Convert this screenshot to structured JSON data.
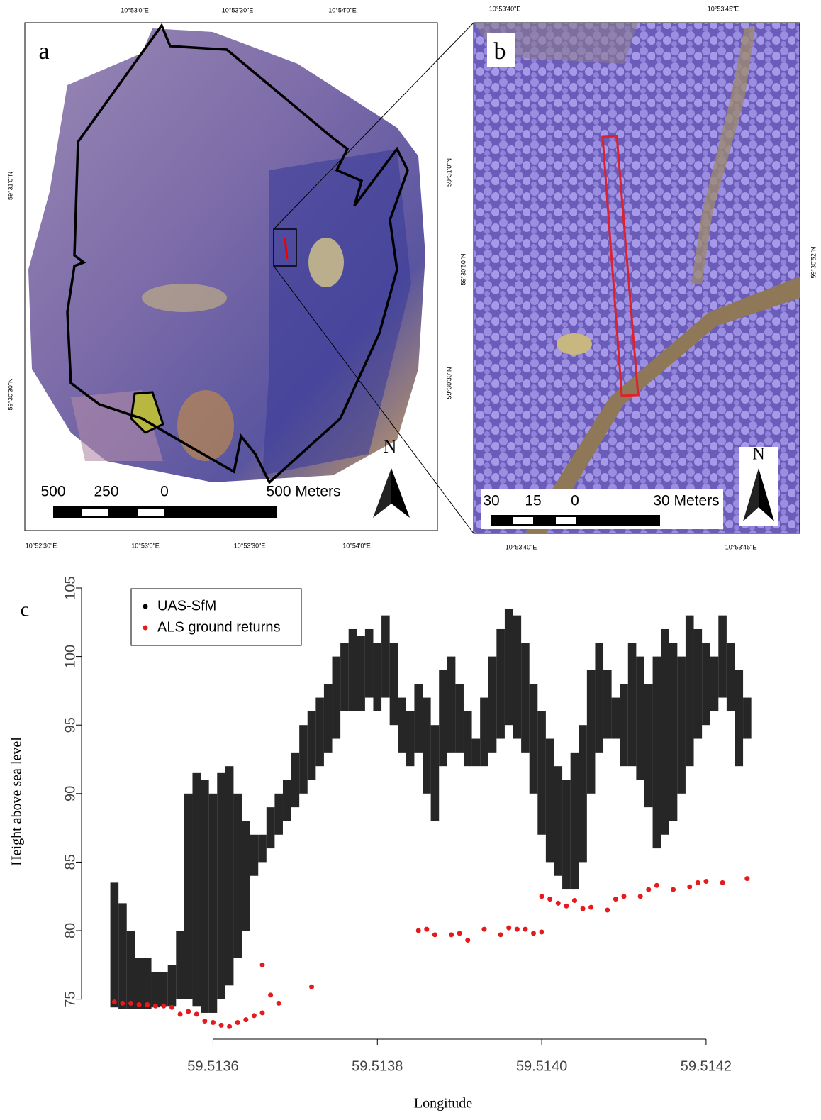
{
  "panels": [
    {
      "label": "a",
      "coords": {
        "top": [
          "10°53'0\"E",
          "10°53'30\"E",
          "10°54'0\"E"
        ],
        "bottom": [
          "10°52'30\"E",
          "10°53'0\"E",
          "10°53'30\"E",
          "10°54'0\"E"
        ],
        "left": [
          "59°31'0\"N",
          "59°30'30\"N"
        ],
        "right": [
          "59°31'0\"N",
          "59°30'30\"N"
        ]
      },
      "scale": [
        "500",
        "250",
        "0",
        "500 Meters"
      ],
      "north": "N"
    },
    {
      "label": "b",
      "coords": {
        "top": [
          "10°53'40\"E",
          "10°53'45\"E"
        ],
        "bottom": [
          "10°53'40\"E",
          "10°53'45\"E"
        ],
        "left": [
          "59°30'50\"N"
        ],
        "right": [
          "59°30'52\"N"
        ]
      },
      "scale": [
        "30",
        "15",
        "0",
        "30 Meters"
      ],
      "north": "N"
    }
  ],
  "chart_data": {
    "type": "scatter",
    "panel_label": "c",
    "x_label": "Longitude",
    "y_label": "Height above sea level",
    "xlim": [
      59.51344,
      59.51432
    ],
    "ylim": [
      72.6,
      105
    ],
    "xticks": [
      59.5136,
      59.5138,
      {
        "value": 59.514,
        "label": "59.5140"
      },
      59.5142
    ],
    "yticks": [
      75,
      80,
      85,
      90,
      95,
      100,
      105
    ],
    "legend": "top-left",
    "series": [
      {
        "name": "UAS-SfM",
        "color": "#000000",
        "x": [
          59.51348,
          59.51349,
          59.5135,
          59.51351,
          59.51352,
          59.51353,
          59.51354,
          59.51355,
          59.51356,
          59.51357,
          59.51358,
          59.51359,
          59.5136,
          59.51361,
          59.51362,
          59.51363,
          59.51364,
          59.51365,
          59.51366,
          59.51367,
          59.51368,
          59.51369,
          59.5137,
          59.51371,
          59.51372,
          59.51373,
          59.51374,
          59.51375,
          59.51376,
          59.51377,
          59.51378,
          59.51379,
          59.5138,
          59.51381,
          59.51382,
          59.51383,
          59.51384,
          59.51385,
          59.51386,
          59.51387,
          59.51388,
          59.51389,
          59.5139,
          59.51391,
          59.51392,
          59.51393,
          59.51394,
          59.51395,
          59.51396,
          59.51397,
          59.51398,
          59.51399,
          59.514,
          59.51401,
          59.51402,
          59.51403,
          59.51404,
          59.51405,
          59.51406,
          59.51407,
          59.51408,
          59.51409,
          59.5141,
          59.51411,
          59.51412,
          59.51413,
          59.51414,
          59.51415,
          59.51416,
          59.51417,
          59.51418,
          59.51419,
          59.5142,
          59.51421,
          59.51422,
          59.51423,
          59.51424,
          59.51425
        ],
        "low": [
          74.4,
          74.3,
          74.3,
          74.3,
          74.3,
          74.4,
          74.5,
          74.5,
          75,
          75,
          74.5,
          74,
          74,
          75,
          76,
          78,
          80,
          84,
          85,
          86,
          87,
          88,
          89,
          90,
          91,
          92,
          93,
          94,
          96,
          96,
          96,
          97,
          96,
          97,
          95,
          93,
          92,
          93,
          90,
          88,
          92,
          93,
          93,
          92,
          92,
          92,
          93,
          94,
          95,
          94,
          93,
          90,
          87,
          85,
          84,
          83,
          83,
          85,
          90,
          93,
          94,
          94,
          92,
          92,
          91,
          89,
          86,
          87,
          88,
          90,
          92,
          94,
          95,
          96,
          97,
          96,
          92,
          94
        ],
        "high": [
          83.5,
          82,
          80,
          78,
          78,
          77,
          77,
          77.5,
          80,
          90,
          91.5,
          91,
          90,
          91.5,
          92,
          90,
          88,
          87,
          87,
          89,
          90,
          91,
          93,
          95,
          96,
          97,
          98,
          100,
          101,
          102,
          101.5,
          102,
          101,
          103,
          101,
          97,
          96,
          98,
          97,
          95,
          99,
          100,
          98,
          96,
          94,
          97,
          100,
          102,
          103.5,
          103,
          101,
          98,
          96,
          94,
          92,
          91,
          93,
          95,
          99,
          101,
          99,
          97,
          98,
          101,
          100,
          98,
          100,
          102,
          101,
          100,
          103,
          102,
          101,
          100,
          103,
          101,
          99,
          97
        ]
      },
      {
        "name": "ALS ground returns",
        "color": "#e41a1c",
        "x": [
          59.51348,
          59.51349,
          59.5135,
          59.51351,
          59.51352,
          59.51353,
          59.51354,
          59.51355,
          59.51356,
          59.51357,
          59.51358,
          59.51359,
          59.5136,
          59.51361,
          59.51362,
          59.51363,
          59.51364,
          59.51365,
          59.51366,
          59.51367,
          59.51368,
          59.51366,
          59.51372,
          59.51385,
          59.51386,
          59.51387,
          59.51389,
          59.5139,
          59.51391,
          59.51393,
          59.51395,
          59.51396,
          59.51397,
          59.51398,
          59.51399,
          59.514,
          59.514,
          59.51401,
          59.51402,
          59.51403,
          59.51404,
          59.51405,
          59.51406,
          59.51408,
          59.51409,
          59.5141,
          59.51412,
          59.51413,
          59.51414,
          59.51416,
          59.51418,
          59.51419,
          59.5142,
          59.51422,
          59.51425
        ],
        "values": [
          74.8,
          74.7,
          74.7,
          74.6,
          74.6,
          74.5,
          74.5,
          74.4,
          73.9,
          74.1,
          73.9,
          73.4,
          73.3,
          73.1,
          73,
          73.3,
          73.5,
          73.8,
          74,
          75.3,
          74.7,
          77.5,
          75.9,
          80,
          80.1,
          79.7,
          79.7,
          79.8,
          79.3,
          80.1,
          79.7,
          80.2,
          80.1,
          80.1,
          79.8,
          79.9,
          82.5,
          82.3,
          82,
          81.8,
          82.2,
          81.6,
          81.7,
          81.5,
          82.3,
          82.5,
          82.5,
          83,
          83.3,
          83,
          83.2,
          83.5,
          83.6,
          83.5,
          83.8
        ]
      }
    ]
  }
}
